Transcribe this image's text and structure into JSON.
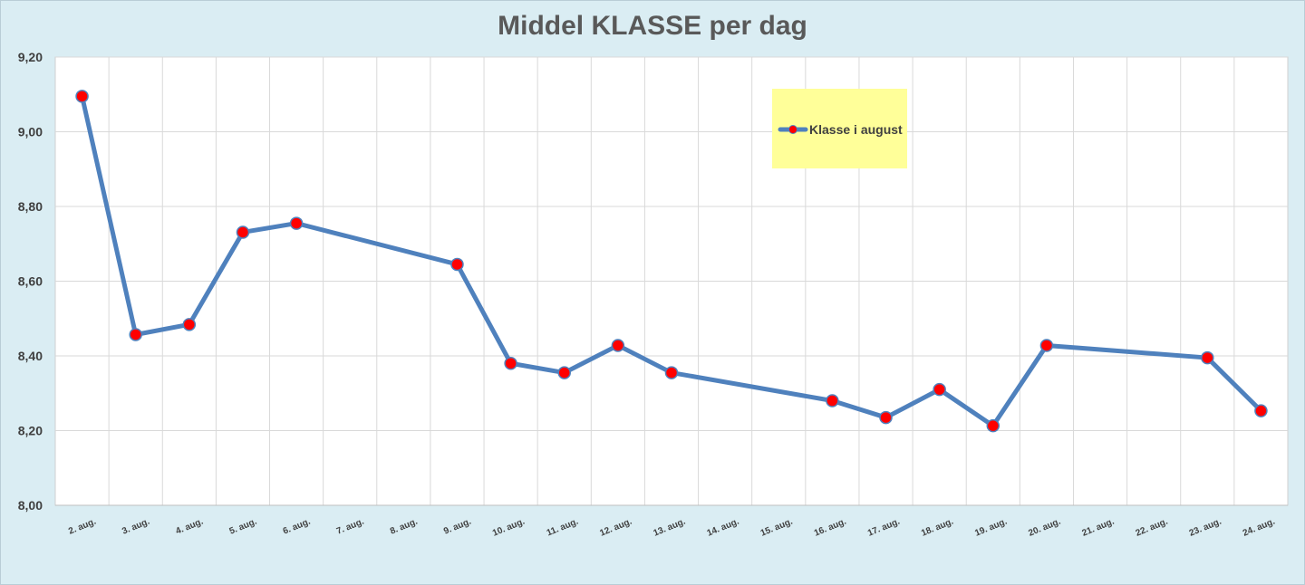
{
  "chart_data": {
    "type": "line",
    "title": "Middel KLASSE per dag",
    "xlabel": "",
    "ylabel": "",
    "ylim": [
      8.0,
      9.2
    ],
    "y_ticks": [
      "8,00",
      "8,20",
      "8,40",
      "8,60",
      "8,80",
      "9,00",
      "9,20"
    ],
    "categories": [
      "2. aug.",
      "3. aug.",
      "4. aug.",
      "5. aug.",
      "6. aug.",
      "7. aug.",
      "8. aug.",
      "9. aug.",
      "10. aug.",
      "11. aug.",
      "12. aug.",
      "13. aug.",
      "14. aug.",
      "15. aug.",
      "16. aug.",
      "17. aug.",
      "18. aug.",
      "19. aug.",
      "20. aug.",
      "21. aug.",
      "22. aug.",
      "23. aug.",
      "24. aug."
    ],
    "series": [
      {
        "name": "Klasse i august",
        "line_color": "#4f81bd",
        "marker_color": "#ff0000",
        "values": [
          9.095,
          8.457,
          8.484,
          8.731,
          8.755,
          null,
          null,
          8.645,
          8.38,
          8.355,
          8.428,
          8.355,
          null,
          null,
          8.28,
          8.235,
          8.31,
          8.213,
          8.428,
          null,
          null,
          8.395,
          8.253
        ]
      }
    ],
    "grid": true,
    "legend_position": "top-right",
    "legend_background": "#ffff99",
    "plot_background": "#ffffff",
    "gridline_color": "#d9d9d9"
  }
}
